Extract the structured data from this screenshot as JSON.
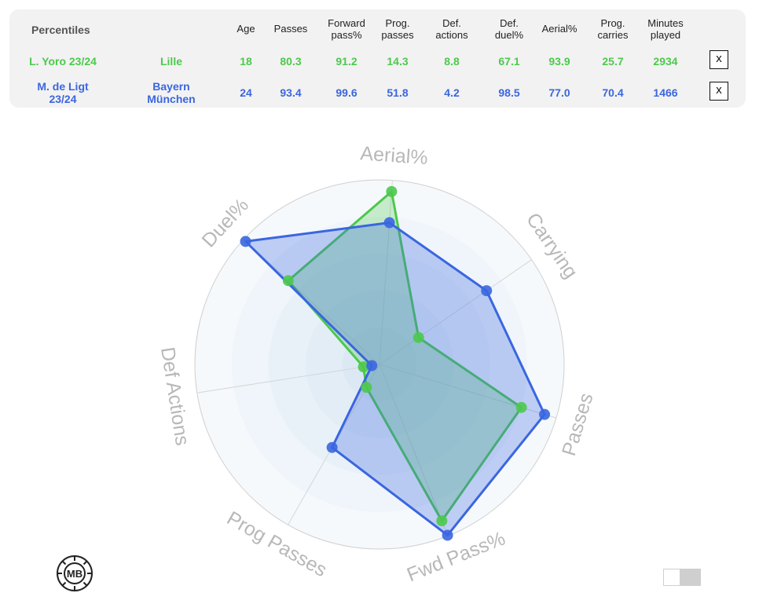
{
  "table": {
    "title": "Percentiles",
    "headers": [
      "Age",
      "Passes",
      "Forward\npass%",
      "Prog.\npasses",
      "Def.\nactions",
      "Def.\nduel%",
      "Aerial%",
      "Prog.\ncarries",
      "Minutes\nplayed"
    ],
    "rows": [
      {
        "player": "L. Yoro 23/24",
        "team": "Lille",
        "values": [
          "18",
          "80.3",
          "91.2",
          "14.3",
          "8.8",
          "67.1",
          "93.9",
          "25.7",
          "2934"
        ],
        "remove_label": "x",
        "color": "#4cc94c"
      },
      {
        "player": "M. de Ligt\n23/24",
        "team": "Bayern\nMünchen",
        "values": [
          "24",
          "93.4",
          "99.6",
          "51.8",
          "4.2",
          "98.5",
          "77.0",
          "70.4",
          "1466"
        ],
        "remove_label": "x",
        "color": "#3a66e0"
      }
    ]
  },
  "chart_data": {
    "type": "radar",
    "axes": [
      "Aerial%",
      "Carrying",
      "Passes",
      "Fwd Pass%",
      "Prog Passes",
      "Def Actions",
      "Duel%"
    ],
    "range": [
      0,
      100
    ],
    "series": [
      {
        "name": "L. Yoro 23/24",
        "color": "#4cc94c",
        "values": [
          93.9,
          25.7,
          80.3,
          91.2,
          14.3,
          8.8,
          67.1
        ]
      },
      {
        "name": "M. de Ligt 23/24",
        "color": "#3a66e0",
        "values": [
          77.0,
          70.4,
          93.4,
          99.6,
          51.8,
          4.2,
          98.5
        ]
      }
    ],
    "grid": true
  },
  "logo": {
    "text": "MB"
  },
  "icons": {
    "remove": "close-icon",
    "toggle": "toggle-switch"
  }
}
